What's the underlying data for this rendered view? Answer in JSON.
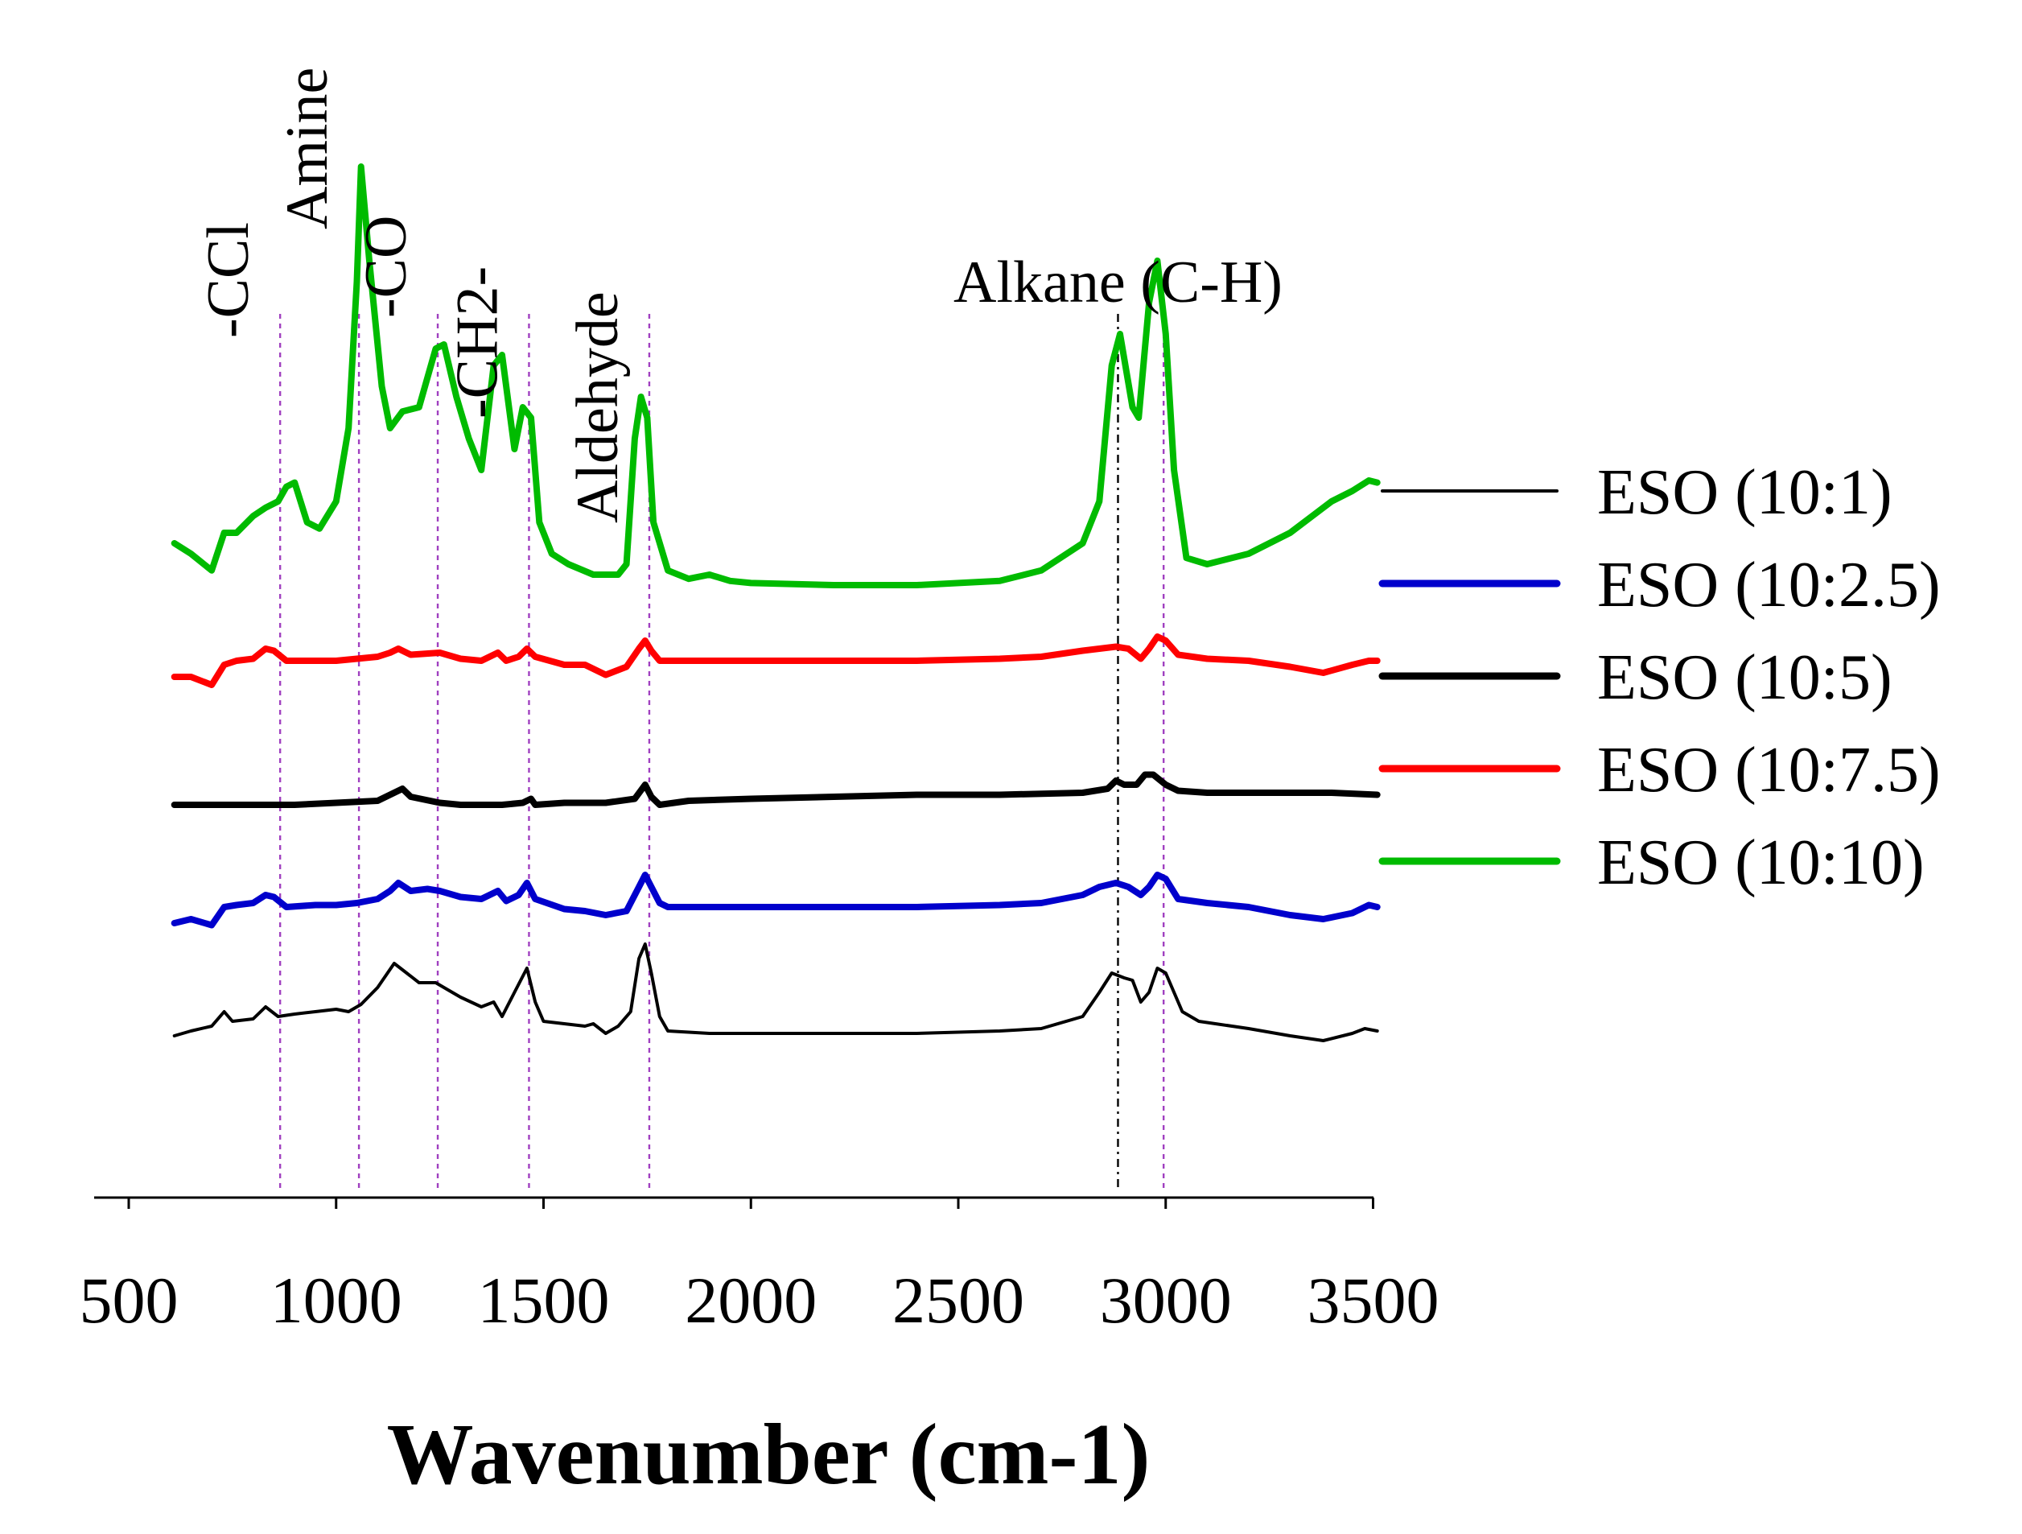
{
  "chart_data": {
    "type": "line",
    "title": "",
    "xlabel": "Wavenumber (cm-1)",
    "ylabel": "",
    "xlim": [
      500,
      3600
    ],
    "xticks": [
      500,
      1000,
      1500,
      2000,
      2500,
      3000,
      3500
    ],
    "y_units": "relative transmittance (offset, arbitrary units)",
    "grid": false,
    "legend_position": "right",
    "annotations": [
      {
        "text": "-CCl",
        "x": 865,
        "line_color": "#a040c0",
        "line_style": "dashed",
        "orientation": "vertical"
      },
      {
        "text": "Amine",
        "x": 1055,
        "line_color": "#a040c0",
        "line_style": "dashed",
        "orientation": "vertical"
      },
      {
        "text": "-CO",
        "x": 1245,
        "line_color": "#a040c0",
        "line_style": "dashed",
        "orientation": "vertical"
      },
      {
        "text": "-CH2-",
        "x": 1465,
        "line_color": "#a040c0",
        "line_style": "dashed",
        "orientation": "vertical"
      },
      {
        "text": "Aldehyde",
        "x": 1755,
        "line_color": "#a040c0",
        "line_style": "dashed",
        "orientation": "vertical"
      },
      {
        "text": "Alkane (C-H)",
        "x": 2885,
        "line_color": "#000000",
        "line_style": "dashdot",
        "orientation": "horizontal"
      },
      {
        "text": "",
        "x": 2995,
        "line_color": "#a040c0",
        "line_style": "dashed",
        "orientation": "horizontal"
      }
    ],
    "series": [
      {
        "name": "ESO (10:1)",
        "color": "#000000",
        "width": "thin",
        "points": [
          [
            610,
            12
          ],
          [
            650,
            14
          ],
          [
            700,
            16
          ],
          [
            730,
            22
          ],
          [
            750,
            18
          ],
          [
            800,
            19
          ],
          [
            830,
            24
          ],
          [
            860,
            20
          ],
          [
            900,
            21
          ],
          [
            950,
            22
          ],
          [
            1000,
            23
          ],
          [
            1030,
            22
          ],
          [
            1060,
            25
          ],
          [
            1100,
            32
          ],
          [
            1140,
            42
          ],
          [
            1170,
            38
          ],
          [
            1200,
            34
          ],
          [
            1240,
            34
          ],
          [
            1270,
            31
          ],
          [
            1300,
            28
          ],
          [
            1350,
            24
          ],
          [
            1380,
            26
          ],
          [
            1400,
            20
          ],
          [
            1430,
            30
          ],
          [
            1460,
            40
          ],
          [
            1480,
            26
          ],
          [
            1500,
            18
          ],
          [
            1550,
            17
          ],
          [
            1600,
            16
          ],
          [
            1620,
            17
          ],
          [
            1650,
            13
          ],
          [
            1680,
            16
          ],
          [
            1710,
            22
          ],
          [
            1730,
            44
          ],
          [
            1745,
            50
          ],
          [
            1760,
            38
          ],
          [
            1780,
            20
          ],
          [
            1800,
            14
          ],
          [
            1900,
            13
          ],
          [
            2000,
            13
          ],
          [
            2200,
            13
          ],
          [
            2400,
            13
          ],
          [
            2600,
            14
          ],
          [
            2700,
            15
          ],
          [
            2800,
            20
          ],
          [
            2840,
            30
          ],
          [
            2870,
            38
          ],
          [
            2900,
            36
          ],
          [
            2920,
            35
          ],
          [
            2940,
            26
          ],
          [
            2960,
            30
          ],
          [
            2980,
            40
          ],
          [
            3000,
            38
          ],
          [
            3020,
            30
          ],
          [
            3040,
            22
          ],
          [
            3080,
            18
          ],
          [
            3200,
            15
          ],
          [
            3300,
            12
          ],
          [
            3380,
            10
          ],
          [
            3450,
            13
          ],
          [
            3480,
            15
          ],
          [
            3510,
            14
          ]
        ]
      },
      {
        "name": "ESO (10:2.5)",
        "color": "#0000cc",
        "width": "thick",
        "points": [
          [
            610,
            12
          ],
          [
            650,
            14
          ],
          [
            700,
            11
          ],
          [
            730,
            20
          ],
          [
            760,
            21
          ],
          [
            800,
            22
          ],
          [
            830,
            26
          ],
          [
            850,
            25
          ],
          [
            880,
            20
          ],
          [
            950,
            21
          ],
          [
            1000,
            21
          ],
          [
            1050,
            22
          ],
          [
            1100,
            24
          ],
          [
            1130,
            28
          ],
          [
            1150,
            32
          ],
          [
            1180,
            28
          ],
          [
            1220,
            29
          ],
          [
            1250,
            28
          ],
          [
            1300,
            25
          ],
          [
            1350,
            24
          ],
          [
            1390,
            28
          ],
          [
            1410,
            23
          ],
          [
            1440,
            26
          ],
          [
            1460,
            32
          ],
          [
            1480,
            24
          ],
          [
            1550,
            19
          ],
          [
            1600,
            18
          ],
          [
            1650,
            16
          ],
          [
            1700,
            18
          ],
          [
            1730,
            30
          ],
          [
            1745,
            36
          ],
          [
            1760,
            30
          ],
          [
            1780,
            22
          ],
          [
            1800,
            20
          ],
          [
            2000,
            20
          ],
          [
            2200,
            20
          ],
          [
            2400,
            20
          ],
          [
            2600,
            21
          ],
          [
            2700,
            22
          ],
          [
            2800,
            26
          ],
          [
            2840,
            30
          ],
          [
            2880,
            32
          ],
          [
            2910,
            30
          ],
          [
            2940,
            26
          ],
          [
            2960,
            30
          ],
          [
            2980,
            36
          ],
          [
            3000,
            34
          ],
          [
            3030,
            24
          ],
          [
            3100,
            22
          ],
          [
            3200,
            20
          ],
          [
            3300,
            16
          ],
          [
            3380,
            14
          ],
          [
            3450,
            17
          ],
          [
            3490,
            21
          ],
          [
            3510,
            20
          ]
        ]
      },
      {
        "name": "ESO (10:5)",
        "color": "#000000",
        "width": "thick",
        "points": [
          [
            610,
            12
          ],
          [
            650,
            12
          ],
          [
            700,
            12
          ],
          [
            750,
            12
          ],
          [
            800,
            12
          ],
          [
            900,
            12
          ],
          [
            1000,
            13
          ],
          [
            1100,
            14
          ],
          [
            1140,
            18
          ],
          [
            1160,
            20
          ],
          [
            1180,
            16
          ],
          [
            1250,
            13
          ],
          [
            1300,
            12
          ],
          [
            1400,
            12
          ],
          [
            1450,
            13
          ],
          [
            1470,
            15
          ],
          [
            1480,
            12
          ],
          [
            1550,
            13
          ],
          [
            1650,
            13
          ],
          [
            1720,
            15
          ],
          [
            1745,
            22
          ],
          [
            1760,
            16
          ],
          [
            1780,
            12
          ],
          [
            1850,
            14
          ],
          [
            2000,
            15
          ],
          [
            2200,
            16
          ],
          [
            2400,
            17
          ],
          [
            2600,
            17
          ],
          [
            2800,
            18
          ],
          [
            2860,
            20
          ],
          [
            2880,
            24
          ],
          [
            2900,
            22
          ],
          [
            2930,
            22
          ],
          [
            2950,
            27
          ],
          [
            2970,
            27
          ],
          [
            3000,
            22
          ],
          [
            3030,
            19
          ],
          [
            3100,
            18
          ],
          [
            3300,
            18
          ],
          [
            3400,
            18
          ],
          [
            3510,
            17
          ]
        ]
      },
      {
        "name": "ESO (10:7.5)",
        "color": "#ff0000",
        "width": "thick",
        "points": [
          [
            610,
            14
          ],
          [
            650,
            14
          ],
          [
            700,
            10
          ],
          [
            730,
            20
          ],
          [
            760,
            22
          ],
          [
            800,
            23
          ],
          [
            830,
            28
          ],
          [
            850,
            27
          ],
          [
            880,
            22
          ],
          [
            950,
            22
          ],
          [
            1000,
            22
          ],
          [
            1050,
            23
          ],
          [
            1100,
            24
          ],
          [
            1130,
            26
          ],
          [
            1150,
            28
          ],
          [
            1180,
            25
          ],
          [
            1250,
            26
          ],
          [
            1300,
            23
          ],
          [
            1350,
            22
          ],
          [
            1390,
            26
          ],
          [
            1410,
            22
          ],
          [
            1440,
            24
          ],
          [
            1460,
            28
          ],
          [
            1480,
            24
          ],
          [
            1550,
            20
          ],
          [
            1600,
            20
          ],
          [
            1650,
            15
          ],
          [
            1700,
            19
          ],
          [
            1730,
            28
          ],
          [
            1745,
            32
          ],
          [
            1760,
            27
          ],
          [
            1780,
            22
          ],
          [
            1800,
            22
          ],
          [
            2000,
            22
          ],
          [
            2200,
            22
          ],
          [
            2400,
            22
          ],
          [
            2600,
            23
          ],
          [
            2700,
            24
          ],
          [
            2800,
            27
          ],
          [
            2840,
            28
          ],
          [
            2880,
            29
          ],
          [
            2910,
            28
          ],
          [
            2940,
            23
          ],
          [
            2960,
            28
          ],
          [
            2980,
            34
          ],
          [
            3000,
            32
          ],
          [
            3030,
            25
          ],
          [
            3100,
            23
          ],
          [
            3200,
            22
          ],
          [
            3300,
            19
          ],
          [
            3380,
            16
          ],
          [
            3450,
            20
          ],
          [
            3490,
            22
          ],
          [
            3510,
            22
          ]
        ]
      },
      {
        "name": "ESO (10:10)",
        "color": "#00bb00",
        "width": "thick",
        "points": [
          [
            610,
            25
          ],
          [
            650,
            20
          ],
          [
            700,
            12
          ],
          [
            730,
            30
          ],
          [
            760,
            30
          ],
          [
            800,
            38
          ],
          [
            830,
            42
          ],
          [
            860,
            45
          ],
          [
            880,
            52
          ],
          [
            900,
            54
          ],
          [
            930,
            35
          ],
          [
            960,
            32
          ],
          [
            1000,
            45
          ],
          [
            1030,
            80
          ],
          [
            1050,
            150
          ],
          [
            1060,
            205
          ],
          [
            1080,
            160
          ],
          [
            1110,
            100
          ],
          [
            1130,
            80
          ],
          [
            1160,
            88
          ],
          [
            1200,
            90
          ],
          [
            1240,
            118
          ],
          [
            1260,
            120
          ],
          [
            1290,
            95
          ],
          [
            1320,
            75
          ],
          [
            1350,
            60
          ],
          [
            1380,
            110
          ],
          [
            1400,
            115
          ],
          [
            1430,
            70
          ],
          [
            1450,
            90
          ],
          [
            1470,
            85
          ],
          [
            1490,
            35
          ],
          [
            1520,
            20
          ],
          [
            1560,
            15
          ],
          [
            1620,
            10
          ],
          [
            1680,
            10
          ],
          [
            1700,
            15
          ],
          [
            1720,
            75
          ],
          [
            1735,
            95
          ],
          [
            1750,
            85
          ],
          [
            1765,
            35
          ],
          [
            1800,
            12
          ],
          [
            1850,
            8
          ],
          [
            1900,
            10
          ],
          [
            1950,
            7
          ],
          [
            2000,
            6
          ],
          [
            2200,
            5
          ],
          [
            2400,
            5
          ],
          [
            2600,
            7
          ],
          [
            2700,
            12
          ],
          [
            2800,
            25
          ],
          [
            2840,
            45
          ],
          [
            2870,
            110
          ],
          [
            2890,
            125
          ],
          [
            2920,
            90
          ],
          [
            2935,
            85
          ],
          [
            2960,
            140
          ],
          [
            2980,
            160
          ],
          [
            3000,
            125
          ],
          [
            3020,
            60
          ],
          [
            3050,
            18
          ],
          [
            3100,
            15
          ],
          [
            3200,
            20
          ],
          [
            3300,
            30
          ],
          [
            3400,
            45
          ],
          [
            3450,
            50
          ],
          [
            3490,
            55
          ],
          [
            3510,
            54
          ]
        ]
      }
    ]
  }
}
